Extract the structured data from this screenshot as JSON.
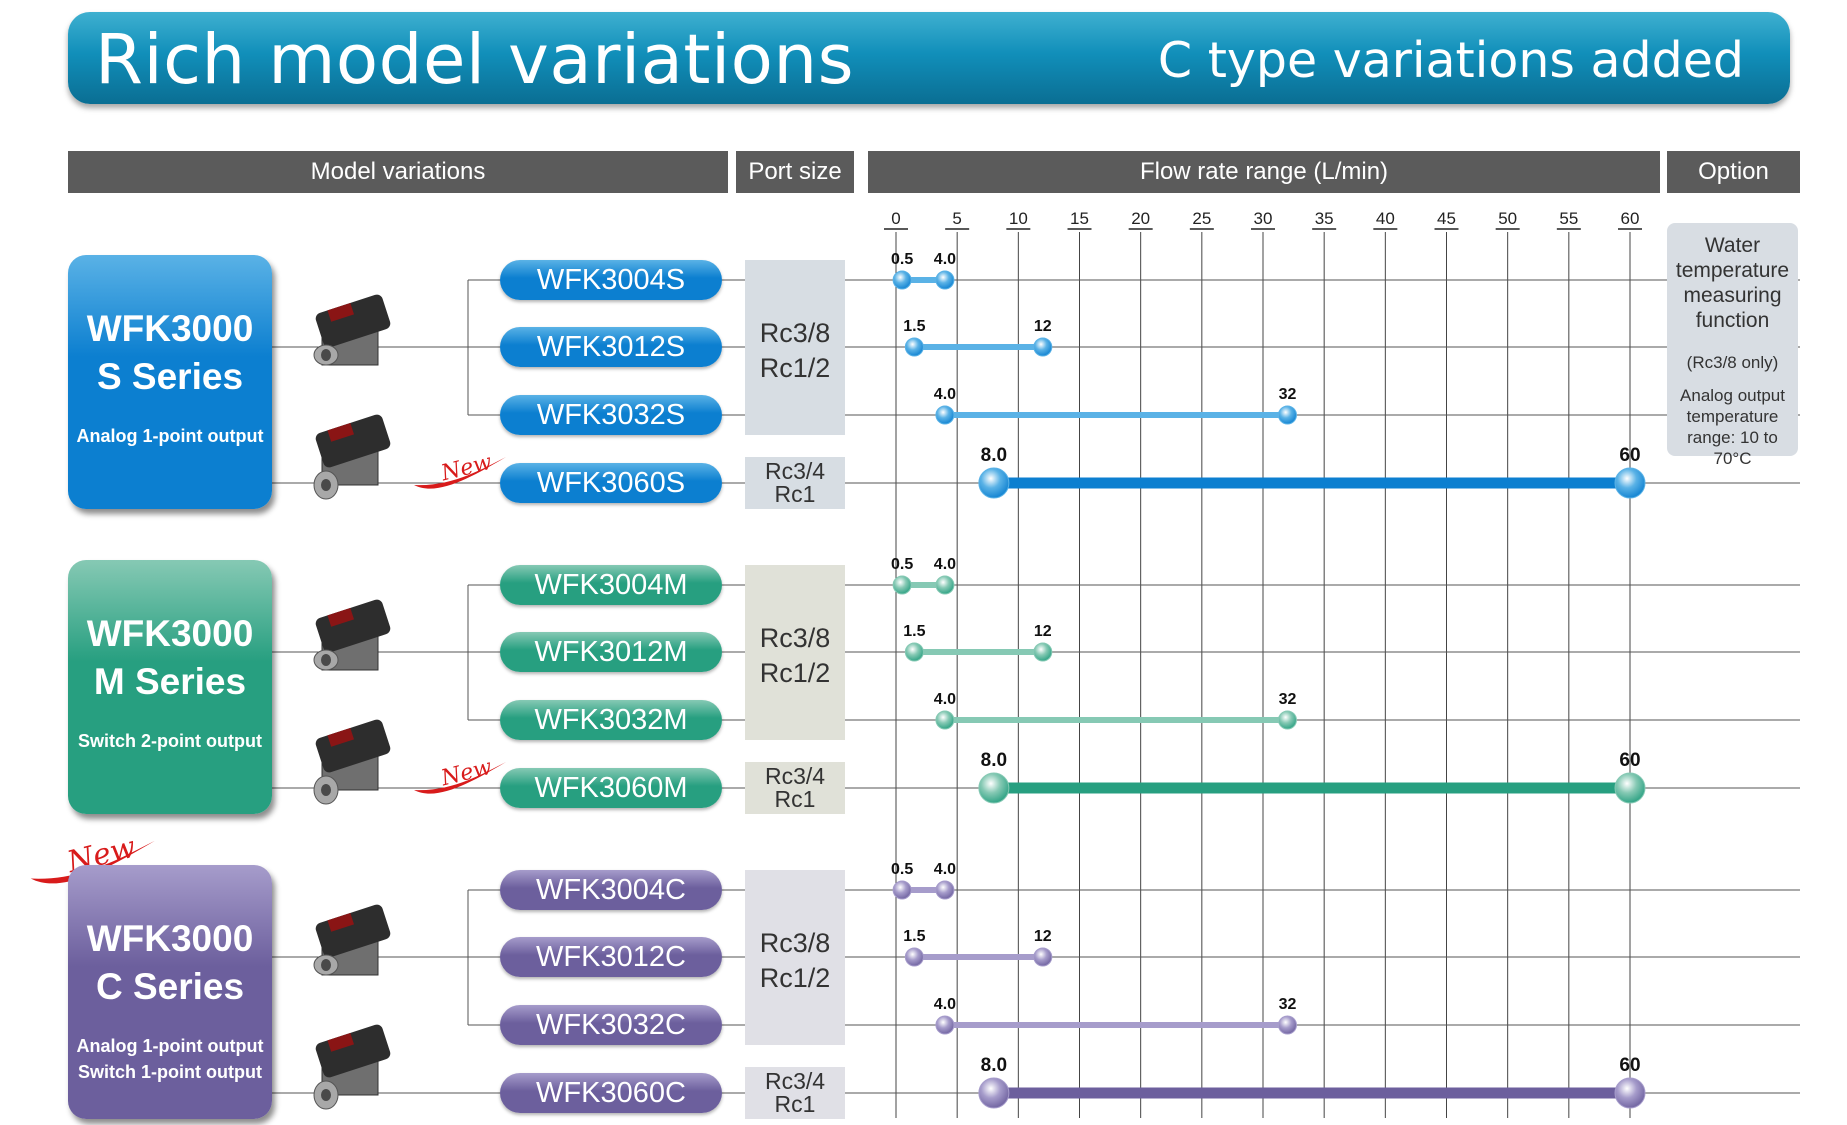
{
  "banner": {
    "title": "Rich model variations",
    "subtitle": "C type variations added"
  },
  "headers": {
    "models": "Model variations",
    "port": "Port size",
    "flow": "Flow rate range (L/min)",
    "option": "Option"
  },
  "option": {
    "line1": "Water temperature measuring function",
    "line2": "(Rc3/8 only)",
    "line3": "Analog output temperature range: 10 to 70°C"
  },
  "new_badge_text": "New",
  "colors": {
    "header_bg": "#5b5b5b",
    "banner": "#118fba",
    "s_series": "#0c7fd0",
    "m_series": "#279f80",
    "c_series": "#6c5f9d",
    "s_light": "#5ab2e6",
    "m_light": "#86c9b4",
    "c_light": "#a69ccb"
  },
  "series": [
    {
      "name_line1": "WFK3000",
      "name_line2": "S Series",
      "output_lines": [
        "Analog 1-point output"
      ],
      "color": "#0c7fd0",
      "light_color": "#5ab2e6",
      "port_small": [
        "Rc3/8",
        "Rc1/2"
      ],
      "port_large": [
        "Rc3/4",
        "Rc1"
      ],
      "models": [
        "WFK3004S",
        "WFK3012S",
        "WFK3032S",
        "WFK3060S"
      ]
    },
    {
      "name_line1": "WFK3000",
      "name_line2": "M Series",
      "output_lines": [
        "Switch 2-point output"
      ],
      "color": "#279f80",
      "light_color": "#86c9b4",
      "port_small": [
        "Rc3/8",
        "Rc1/2"
      ],
      "port_large": [
        "Rc3/4",
        "Rc1"
      ],
      "models": [
        "WFK3004M",
        "WFK3012M",
        "WFK3032M",
        "WFK3060M"
      ]
    },
    {
      "name_line1": "WFK3000",
      "name_line2": "C Series",
      "output_lines": [
        "Analog 1-point output",
        "Switch 1-point output"
      ],
      "color": "#6c5f9d",
      "light_color": "#a69ccb",
      "port_small": [
        "Rc3/8",
        "Rc1/2"
      ],
      "port_large": [
        "Rc3/4",
        "Rc1"
      ],
      "models": [
        "WFK3004C",
        "WFK3012C",
        "WFK3032C",
        "WFK3060C"
      ]
    }
  ],
  "chart_data": {
    "type": "range-bar",
    "xlabel": "Flow rate range (L/min)",
    "xlim": [
      0,
      60
    ],
    "ticks": [
      0,
      5,
      10,
      15,
      20,
      25,
      30,
      35,
      40,
      45,
      50,
      55,
      60
    ],
    "ranges": [
      {
        "model": "WFK3004S",
        "min": 0.5,
        "max": 4.0,
        "min_label": "0.5",
        "max_label": "4.0"
      },
      {
        "model": "WFK3012S",
        "min": 1.5,
        "max": 12,
        "min_label": "1.5",
        "max_label": "12"
      },
      {
        "model": "WFK3032S",
        "min": 4.0,
        "max": 32,
        "min_label": "4.0",
        "max_label": "32"
      },
      {
        "model": "WFK3060S",
        "min": 8.0,
        "max": 60,
        "min_label": "8.0",
        "max_label": "60"
      },
      {
        "model": "WFK3004M",
        "min": 0.5,
        "max": 4.0,
        "min_label": "0.5",
        "max_label": "4.0"
      },
      {
        "model": "WFK3012M",
        "min": 1.5,
        "max": 12,
        "min_label": "1.5",
        "max_label": "12"
      },
      {
        "model": "WFK3032M",
        "min": 4.0,
        "max": 32,
        "min_label": "4.0",
        "max_label": "32"
      },
      {
        "model": "WFK3060M",
        "min": 8.0,
        "max": 60,
        "min_label": "8.0",
        "max_label": "60"
      },
      {
        "model": "WFK3004C",
        "min": 0.5,
        "max": 4.0,
        "min_label": "0.5",
        "max_label": "4.0"
      },
      {
        "model": "WFK3012C",
        "min": 1.5,
        "max": 12,
        "min_label": "1.5",
        "max_label": "12"
      },
      {
        "model": "WFK3032C",
        "min": 4.0,
        "max": 32,
        "min_label": "4.0",
        "max_label": "32"
      },
      {
        "model": "WFK3060C",
        "min": 8.0,
        "max": 60,
        "min_label": "8.0",
        "max_label": "60"
      }
    ]
  }
}
